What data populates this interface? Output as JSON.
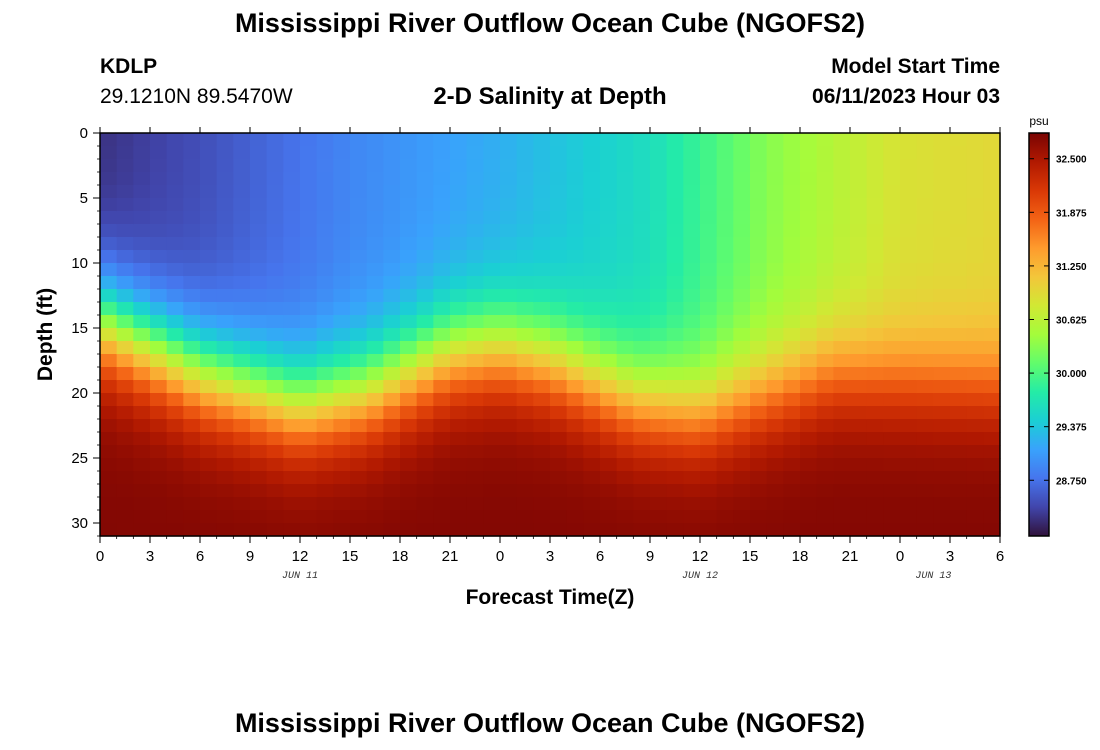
{
  "titles": {
    "top": "Mississippi River Outflow Ocean Cube (NGOFS2)",
    "bottom": "Mississippi River Outflow Ocean Cube (NGOFS2)"
  },
  "station": {
    "id": "KDLP",
    "coords": "29.1210N  89.5470W"
  },
  "model": {
    "label": "Model Start Time",
    "time": "06/11/2023 Hour 03"
  },
  "chart_data": {
    "type": "heatmap",
    "title": "2-D Salinity at Depth",
    "xlabel": "Forecast Time(Z)",
    "ylabel": "Depth (ft)",
    "x_ticks": [
      "0",
      "3",
      "6",
      "9",
      "12",
      "15",
      "18",
      "21",
      "0",
      "3",
      "6",
      "9",
      "12",
      "15",
      "18",
      "21",
      "0",
      "3",
      "6"
    ],
    "x_range_hours": [
      0,
      54
    ],
    "date_labels": [
      {
        "text": "JUN 11",
        "hour": 12
      },
      {
        "text": "JUN 12",
        "hour": 36
      },
      {
        "text": "JUN 13",
        "hour": 50
      }
    ],
    "y_ticks": [
      "0",
      "5",
      "10",
      "15",
      "20",
      "25",
      "30"
    ],
    "y_range_ft": [
      0,
      31
    ],
    "colorbar": {
      "unit": "psu",
      "range": [
        28.1,
        32.8
      ],
      "labels": [
        "32.500",
        "31.875",
        "31.250",
        "30.625",
        "30.000",
        "29.375",
        "28.750"
      ],
      "colors": [
        "#30123b",
        "#4145ab",
        "#4675ed",
        "#39a2fc",
        "#1bcfd4",
        "#24eca6",
        "#61fc6c",
        "#a4fc3b",
        "#d1e834",
        "#f3c63a",
        "#fe9b2d",
        "#f36315",
        "#d93806",
        "#b11901",
        "#7a0403"
      ]
    },
    "salinity_model": {
      "surface_keyframes": [
        [
          0,
          28.3
        ],
        [
          6,
          28.5
        ],
        [
          15,
          28.9
        ],
        [
          24,
          29.2
        ],
        [
          33,
          29.6
        ],
        [
          40,
          30.3
        ],
        [
          48,
          30.85
        ],
        [
          54,
          30.95
        ]
      ],
      "interface_depth_keyframes": [
        [
          0,
          14.5
        ],
        [
          6,
          18.5
        ],
        [
          12,
          21.0
        ],
        [
          16,
          20.0
        ],
        [
          21,
          17.0
        ],
        [
          24,
          16.5
        ],
        [
          27,
          17.5
        ],
        [
          32,
          20.5
        ],
        [
          36,
          21.5
        ],
        [
          40,
          20.0
        ],
        [
          44,
          18.5
        ],
        [
          48,
          19.0
        ],
        [
          54,
          19.5
        ]
      ],
      "bottom": 32.75,
      "time_step_hours": 1,
      "depth_step_ft": 1
    }
  }
}
